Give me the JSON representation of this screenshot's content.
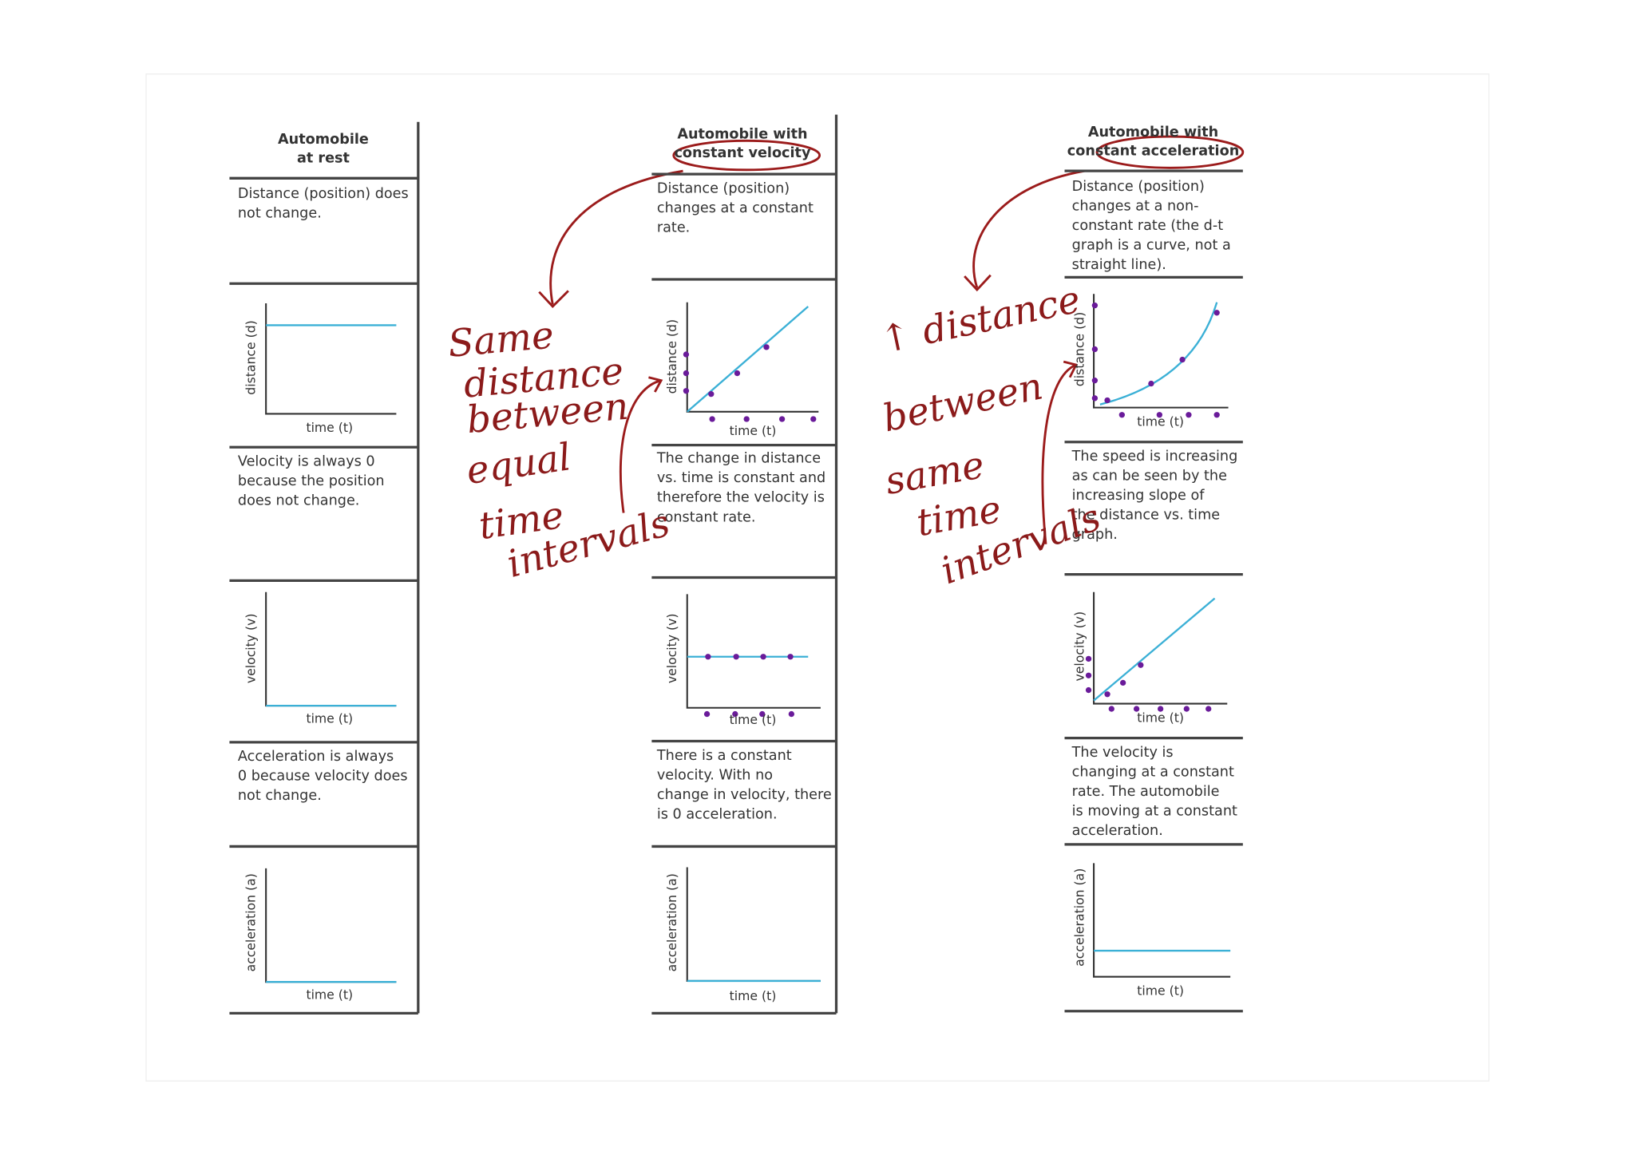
{
  "columns": [
    {
      "header": [
        "Automobile",
        "at rest"
      ],
      "rows": [
        {
          "text": [
            "Distance (position) does",
            "not change."
          ]
        },
        {
          "y_label": "distance (d)",
          "x_label": "time (t)"
        },
        {
          "text": [
            "Velocity is always 0",
            "because the position",
            "does not change."
          ]
        },
        {
          "y_label": "velocity (v)",
          "x_label": "time (t)"
        },
        {
          "text": [
            "Acceleration is always",
            "0 because velocity does",
            "not change."
          ]
        },
        {
          "y_label": "acceleration (a)",
          "x_label": "time (t)"
        }
      ]
    },
    {
      "header": [
        "Automobile with",
        "constant velocity"
      ],
      "rows": [
        {
          "text": [
            "Distance (position)",
            "changes at a constant",
            "rate."
          ]
        },
        {
          "y_label": "distance (d)",
          "x_label": "time (t)"
        },
        {
          "text": [
            "The change in distance",
            "vs. time is constant and",
            "therefore the velocity is",
            "constant rate."
          ]
        },
        {
          "y_label": "velocity (v)",
          "x_label": "time (t)"
        },
        {
          "text": [
            "There is a constant",
            "velocity.  With no",
            "change in velocity, there",
            "is 0 acceleration."
          ]
        },
        {
          "y_label": "acceleration (a)",
          "x_label": "time (t)"
        }
      ]
    },
    {
      "header": [
        "Automobile with",
        "constant acceleration"
      ],
      "rows": [
        {
          "text": [
            "Distance (position)",
            "changes at a non-",
            "constant rate (the d-t",
            "graph is a curve, not a",
            "straight line)."
          ]
        },
        {
          "y_label": "distance (d)",
          "x_label": "time (t)"
        },
        {
          "text": [
            "The speed is increasing",
            "as can be seen by the",
            "increasing slope of",
            "the distance vs. time",
            "graph."
          ]
        },
        {
          "y_label": "velocity (v)",
          "x_label": "time (t)"
        },
        {
          "text": [
            "The velocity is",
            "changing at a constant",
            "rate. The automobile",
            "is moving at a constant",
            "acceleration."
          ]
        },
        {
          "y_label": "acceleration (a)",
          "x_label": "time (t)"
        }
      ]
    }
  ],
  "annotations": [
    {
      "lines": [
        "Same",
        "distance",
        "between",
        "equal",
        "time",
        "intervals"
      ]
    },
    {
      "lines": [
        "↑ distance",
        "between",
        "same",
        "time",
        "intervals"
      ]
    }
  ]
}
